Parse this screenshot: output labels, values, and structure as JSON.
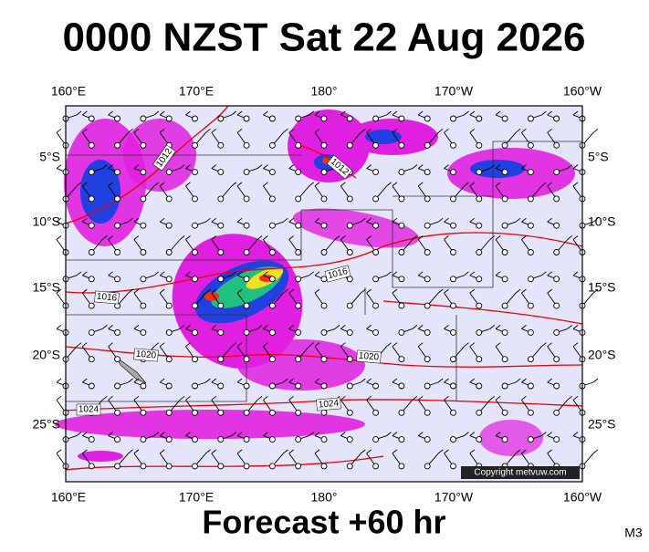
{
  "title": "0000 NZST Sat 22 Aug 2026",
  "map": {
    "top_labels": [
      "160°E",
      "170°E",
      "180°",
      "170°W",
      "160°W"
    ],
    "bottom_labels": [
      "160°E",
      "170°E",
      "180°",
      "170°W",
      "160°W"
    ],
    "left_labels": [
      "5°S",
      "10°S",
      "15°S",
      "20°S",
      "25°S"
    ],
    "right_labels": [
      "5°S",
      "10°S",
      "15°S",
      "20°S",
      "25°S"
    ],
    "isobar_labels": [
      "1012",
      "1012",
      "1016",
      "1016",
      "1020",
      "1020",
      "1024",
      "1024"
    ],
    "copyright": "Copyright metvuw.com"
  },
  "footer": "Forecast +60 hr",
  "code": "M3"
}
